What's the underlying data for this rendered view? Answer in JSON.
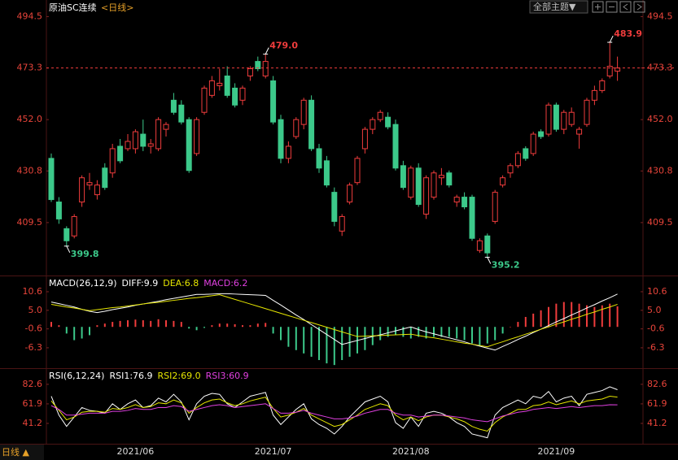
{
  "toolbar": {
    "theme": "全部主题▼"
  },
  "footer": {
    "period": "日线 ▲"
  },
  "chart_data": [
    {
      "type": "candlestick",
      "title": "原油SC连续",
      "period": "<日线>",
      "categories": [
        null,
        null,
        null,
        null,
        null,
        null,
        null,
        null,
        null,
        null,
        null,
        "2021/06",
        null,
        null,
        null,
        null,
        null,
        null,
        null,
        null,
        null,
        null,
        null,
        null,
        null,
        null,
        null,
        null,
        null,
        "2021/07",
        null,
        null,
        null,
        null,
        null,
        null,
        null,
        null,
        null,
        null,
        null,
        null,
        null,
        null,
        null,
        null,
        null,
        "2021/08",
        null,
        null,
        null,
        null,
        null,
        null,
        null,
        null,
        null,
        null,
        null,
        null,
        null,
        null,
        null,
        null,
        null,
        null,
        "2021/09",
        null,
        null,
        null,
        null,
        null,
        null,
        null,
        null
      ],
      "open": [
        436,
        418,
        407,
        404,
        418,
        425,
        421,
        432,
        430,
        441,
        440,
        440,
        446,
        441,
        440,
        448,
        460,
        458,
        452,
        438,
        455,
        462,
        466,
        470,
        465,
        460,
        470,
        476,
        470,
        468,
        452,
        436,
        445,
        450,
        460,
        440,
        435,
        422,
        406,
        418,
        426,
        440,
        448,
        452,
        453,
        450,
        433,
        420,
        432,
        413,
        420,
        428,
        430,
        418,
        420,
        420,
        398,
        404,
        410,
        425,
        430,
        433,
        440,
        438,
        447,
        446,
        458,
        448,
        450,
        446,
        450,
        460,
        464,
        470,
        472
      ],
      "high": [
        438,
        420,
        408,
        413,
        429,
        430,
        427,
        434,
        442,
        444,
        446,
        448,
        452,
        444,
        453,
        451,
        463,
        460,
        453,
        453,
        466,
        470,
        473,
        474,
        467,
        466,
        474,
        478,
        479,
        470,
        454,
        443,
        453,
        461,
        462,
        442,
        437,
        424,
        413,
        426,
        437,
        449,
        453,
        456,
        455,
        452,
        435,
        433,
        434,
        429,
        431,
        432,
        431,
        421,
        422,
        421,
        403,
        405,
        423,
        429,
        434,
        439,
        441,
        447,
        448,
        459,
        459,
        456,
        457,
        449,
        461,
        466,
        469,
        483.9,
        478
      ],
      "low": [
        418,
        409,
        399.8,
        403,
        416,
        423,
        419,
        423,
        428,
        434,
        439,
        438,
        439,
        438,
        439,
        445,
        454,
        450,
        430,
        437,
        454,
        461,
        464,
        461,
        457,
        458,
        468,
        472,
        469,
        450,
        434,
        434,
        444,
        448,
        439,
        430,
        424,
        408,
        404,
        417,
        425,
        438,
        446,
        451,
        448,
        431,
        423,
        419,
        416,
        411,
        419,
        425,
        424,
        416,
        415,
        402,
        397,
        395.2,
        409,
        424,
        428,
        432,
        435,
        437,
        444,
        445,
        447,
        446,
        449,
        440,
        449,
        458,
        463,
        469,
        468
      ],
      "close": [
        419,
        411,
        402,
        412,
        428,
        426,
        425,
        424,
        440,
        435,
        443,
        447,
        441,
        442,
        452,
        450,
        455,
        451,
        431,
        452,
        465,
        468,
        467,
        462,
        458,
        465,
        473,
        473,
        476,
        451,
        436,
        441,
        452,
        460,
        440,
        432,
        425,
        410,
        412,
        425,
        436,
        448,
        452,
        455,
        449,
        432,
        424,
        432,
        417,
        428,
        430,
        429,
        425,
        420,
        416,
        403,
        402,
        397,
        422,
        428,
        433,
        438,
        436,
        446,
        445,
        458,
        448,
        455,
        455,
        448,
        460,
        464,
        468,
        474,
        473.3
      ],
      "ylim": [
        388,
        498
      ],
      "yticks": [
        {
          "value": 409.5,
          "label": "409.5"
        },
        {
          "value": 430.8,
          "label": "430.8"
        },
        {
          "value": 452,
          "label": "452.0"
        },
        {
          "value": 473.3,
          "label": "473.3"
        },
        {
          "value": 494.5,
          "label": "494.5"
        }
      ],
      "up_color": "#f03c3c",
      "down_color": "#3cc98a",
      "annotations": [
        {
          "label": "479.0",
          "value": 479
        },
        {
          "label": "483.9",
          "value": 483.9
        },
        {
          "label": "399.8",
          "value": 399.8
        },
        {
          "label": "395.2",
          "value": 395.2
        }
      ]
    },
    {
      "type": "macd",
      "title": "MACD(26,12,9)",
      "ylim": [
        -12.2,
        15
      ],
      "yticks": [
        {
          "value": -6.3,
          "label": "-6.3"
        },
        {
          "value": -0.6,
          "label": "-0.6"
        },
        {
          "value": 5,
          "label": "5.0"
        },
        {
          "value": 10.6,
          "label": "10.6"
        }
      ],
      "series": [
        {
          "name": "DIFF",
          "legend": "DIFF:9.9",
          "style": "line",
          "color": "#ffffff",
          "values": [
            7.5,
            7,
            6.5,
            6,
            5.3,
            4.7,
            4.3,
            4.7,
            5.2,
            5.6,
            6,
            6.5,
            6.9,
            7.3,
            7.7,
            8.2,
            8.6,
            9,
            9.4,
            9.8,
            9.8,
            9.9,
            10,
            10,
            9.9,
            9.8,
            9.7,
            9.6,
            9.5,
            8,
            6.6,
            5.1,
            3.6,
            2.2,
            0.7,
            -0.8,
            -2.3,
            -3.8,
            -5.3,
            -4.7,
            -4.1,
            -3.5,
            -2.9,
            -2.4,
            -1.8,
            -1.2,
            -0.6,
            0,
            -0.8,
            -1.5,
            -2.1,
            -2.7,
            -3.3,
            -3.9,
            -4.5,
            -5.2,
            -5.8,
            -6.4,
            -7,
            -5.9,
            -4.9,
            -3.8,
            -2.8,
            -1.7,
            -0.7,
            0.4,
            1.5,
            2.5,
            3.6,
            4.6,
            5.7,
            6.7,
            7.8,
            8.8,
            9.9
          ]
        },
        {
          "name": "DEA",
          "legend": "DEA:6.8",
          "style": "line",
          "color": "#e6e600",
          "values": [
            6.8,
            6.4,
            6,
            5.7,
            5.3,
            4.9,
            5.2,
            5.5,
            5.8,
            6,
            6.3,
            6.6,
            6.9,
            7.2,
            7.4,
            7.7,
            8,
            8.3,
            8.6,
            8.8,
            9.1,
            9.4,
            9.7,
            9,
            8.3,
            7.6,
            6.9,
            6.2,
            5.5,
            4.8,
            4.1,
            3.4,
            2.7,
            2,
            1.3,
            0.6,
            -0.1,
            -0.8,
            -1.5,
            -2.2,
            -2.9,
            -2.8,
            -2.7,
            -2.6,
            -2.5,
            -2.4,
            -2.3,
            -2.2,
            -2.6,
            -3,
            -3.3,
            -3.7,
            -4.1,
            -4.5,
            -4.9,
            -5.2,
            -5.6,
            -6,
            -5.2,
            -4.5,
            -3.7,
            -3,
            -2.2,
            -1.5,
            -0.7,
            0,
            0.8,
            1.5,
            2.3,
            3,
            3.8,
            4.5,
            5.3,
            6,
            6.8
          ]
        },
        {
          "name": "MACD",
          "legend": "MACD:6.2",
          "style": "bar",
          "color": "#f03c3c",
          "neg_color": "#3cc98a",
          "legend_color": "#e040e0",
          "values": [
            1.5,
            0.5,
            -2,
            -4,
            -3.5,
            -2.5,
            0.5,
            1,
            1.5,
            1.8,
            2,
            2.2,
            2,
            1.8,
            2.3,
            2,
            1.8,
            1.5,
            -0.5,
            -1,
            -0.3,
            0.5,
            1,
            1,
            0.8,
            0.5,
            0.5,
            1,
            1.2,
            -2,
            -4,
            -6,
            -7,
            -8,
            -9,
            -10,
            -11,
            -11.5,
            -10,
            -9,
            -8,
            -7,
            -5.5,
            -4,
            -3,
            -2.5,
            -3,
            -3.5,
            -3,
            -3.5,
            -3,
            -3,
            -3,
            -3.5,
            -4,
            -5,
            -5.5,
            -5,
            -4,
            -2,
            0,
            1.5,
            3,
            4,
            5,
            6,
            7,
            7.5,
            7.5,
            7,
            6.5,
            6,
            6.5,
            7,
            6.2
          ]
        }
      ]
    },
    {
      "type": "line",
      "title": "RSI(6,12,24)",
      "ylim": [
        20.5,
        98
      ],
      "yticks": [
        41.2,
        61.9,
        82.6
      ],
      "series": [
        {
          "name": "RSI1",
          "legend": "RSI1:76.9",
          "color": "#ffffff",
          "values": [
            70,
            50,
            38,
            48,
            58,
            55,
            54,
            52,
            62,
            56,
            62,
            66,
            58,
            60,
            68,
            64,
            72,
            64,
            45,
            62,
            70,
            73,
            72,
            62,
            58,
            64,
            70,
            72,
            74,
            50,
            40,
            48,
            56,
            62,
            46,
            40,
            36,
            30,
            38,
            48,
            56,
            64,
            67,
            70,
            64,
            42,
            36,
            48,
            38,
            52,
            54,
            52,
            48,
            42,
            38,
            30,
            28,
            26,
            50,
            58,
            62,
            66,
            62,
            70,
            68,
            75,
            64,
            68,
            70,
            60,
            72,
            74,
            76,
            80,
            76.9
          ]
        },
        {
          "name": "RSI2",
          "legend": "RSI2:69.0",
          "color": "#e6e600",
          "values": [
            65,
            55,
            45,
            48,
            53,
            54,
            54,
            53,
            57,
            56,
            58,
            61,
            58,
            59,
            63,
            62,
            66,
            63,
            52,
            58,
            63,
            66,
            67,
            63,
            60,
            62,
            65,
            67,
            69,
            57,
            48,
            50,
            53,
            57,
            50,
            46,
            42,
            38,
            40,
            45,
            50,
            56,
            59,
            62,
            60,
            50,
            45,
            48,
            44,
            48,
            50,
            50,
            48,
            46,
            43,
            38,
            35,
            33,
            42,
            48,
            52,
            56,
            56,
            60,
            61,
            64,
            61,
            63,
            65,
            62,
            65,
            66,
            67,
            70,
            69
          ]
        },
        {
          "name": "RSI3",
          "legend": "RSI3:60.9",
          "color": "#e040e0",
          "values": [
            60,
            56,
            50,
            50,
            51,
            52,
            52,
            52,
            54,
            54,
            55,
            57,
            56,
            56,
            58,
            58,
            60,
            59,
            54,
            56,
            58,
            60,
            61,
            60,
            58,
            59,
            60,
            61,
            62,
            57,
            52,
            52,
            53,
            55,
            52,
            50,
            48,
            46,
            46,
            47,
            49,
            52,
            54,
            56,
            56,
            52,
            50,
            50,
            48,
            49,
            50,
            50,
            49,
            48,
            47,
            45,
            44,
            43,
            46,
            49,
            51,
            53,
            54,
            56,
            57,
            58,
            57,
            58,
            59,
            58,
            59,
            60,
            60,
            61,
            60.9
          ]
        }
      ]
    }
  ]
}
